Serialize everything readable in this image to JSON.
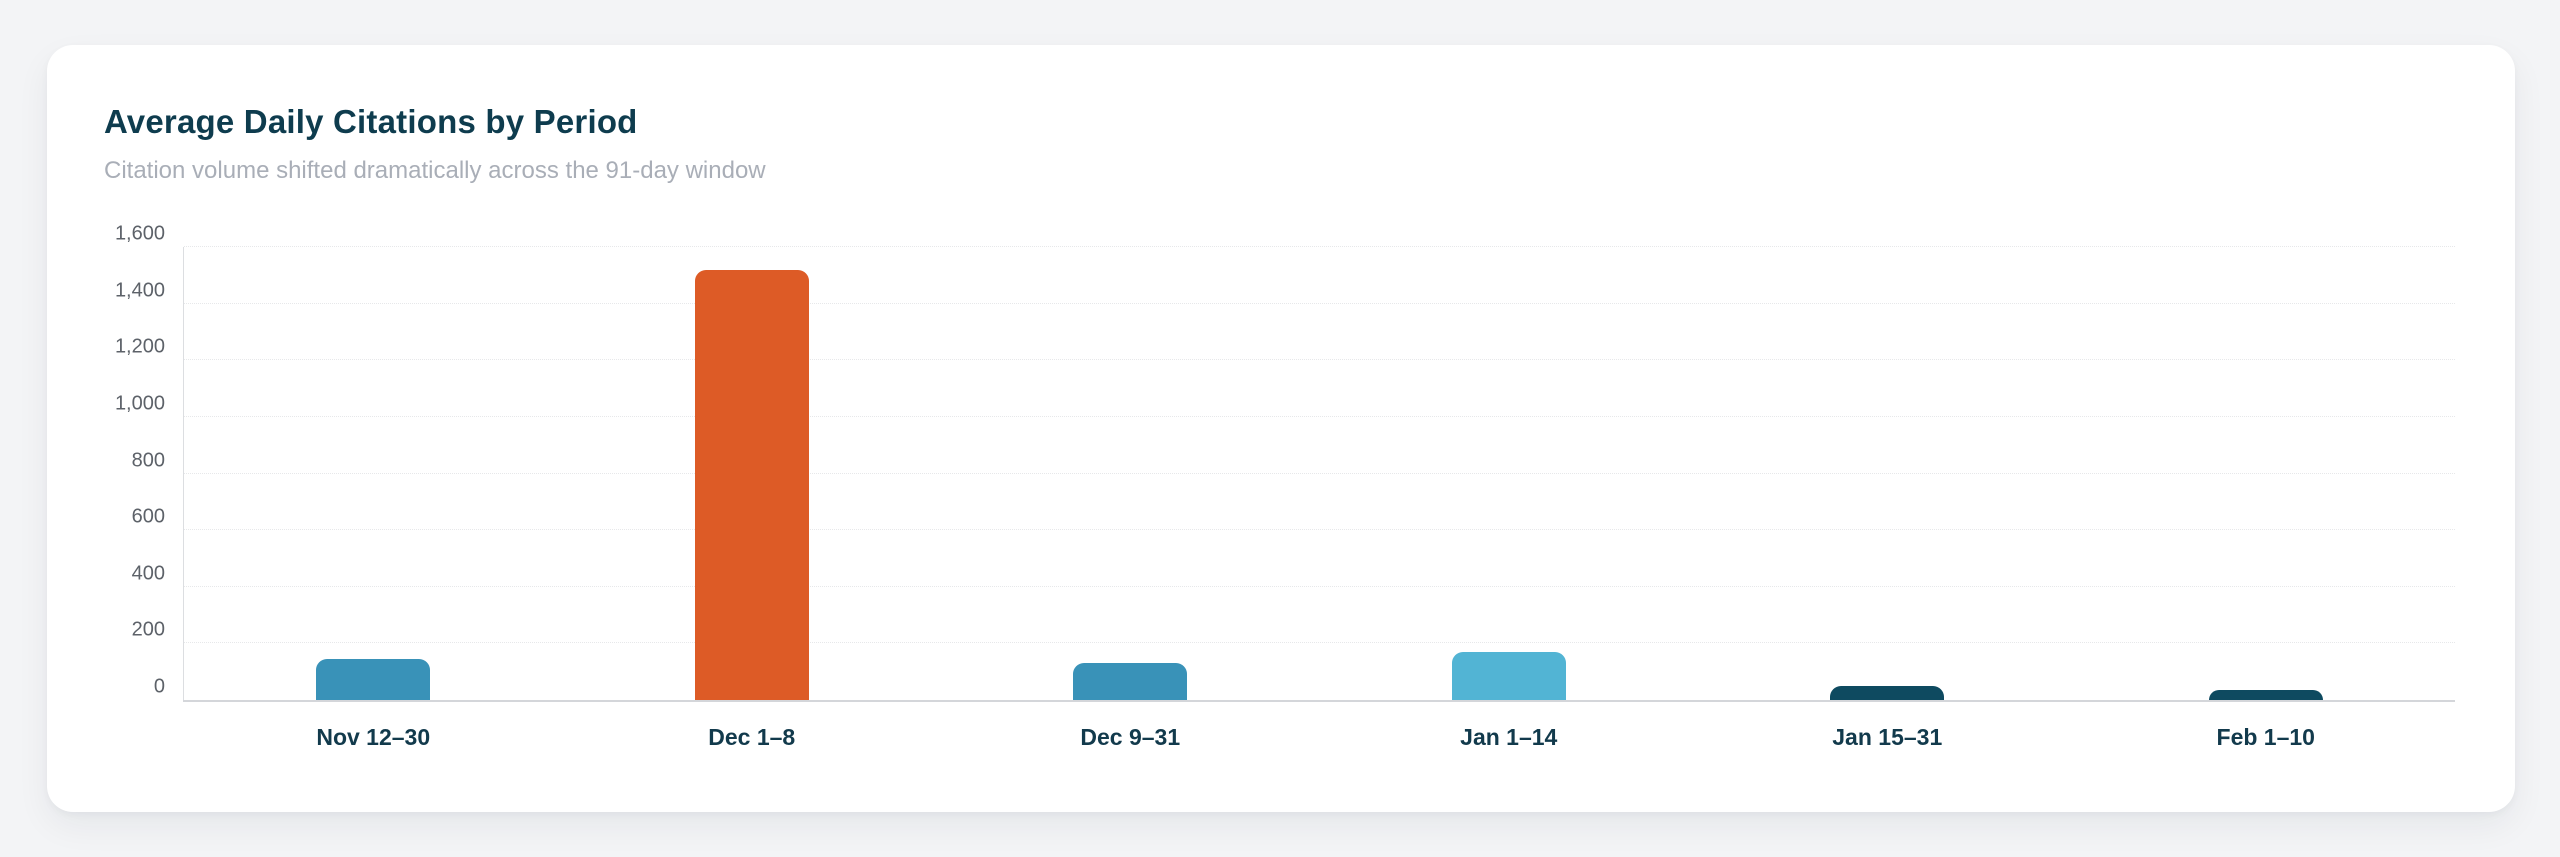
{
  "page": {
    "background_color": "#f3f4f6",
    "card_color": "#ffffff"
  },
  "header": {
    "title": "Average Daily Citations by Period",
    "subtitle": "Citation volume shifted dramatically across the 91-day window"
  },
  "colors": {
    "title_text": "#0e3c4e",
    "subtitle_text": "#a9aeb7",
    "axis_label_text": "#5d6269",
    "x_label_text": "#123a4c",
    "gridline": "#e7e8ea",
    "axis_line": "#d4d6da",
    "bar_steel_blue": "#3992b8",
    "bar_orange": "#dd5b26",
    "bar_light_blue": "#52b4d4",
    "bar_dark_navy": "#0e4a60"
  },
  "chart_data": {
    "type": "bar",
    "title": "Average Daily Citations by Period",
    "subtitle": "Citation volume shifted dramatically across the 91-day window",
    "categories": [
      "Nov 12–30",
      "Dec 1–8",
      "Dec 9–31",
      "Jan 1–14",
      "Jan 15–31",
      "Feb 1–10"
    ],
    "values": [
      145,
      1520,
      130,
      170,
      50,
      35
    ],
    "bar_colors": [
      "#3992b8",
      "#dd5b26",
      "#3992b8",
      "#52b4d4",
      "#0e4a60",
      "#0e4a60"
    ],
    "xlabel": "",
    "ylabel": "",
    "ylim": [
      0,
      1600
    ],
    "yticks": [
      0,
      200,
      400,
      600,
      800,
      1000,
      1200,
      1400,
      1600
    ],
    "ytick_labels": [
      "0",
      "200",
      "400",
      "600",
      "800",
      "1,000",
      "1,200",
      "1,400",
      "1,600"
    ],
    "grid": true,
    "legend": false
  }
}
